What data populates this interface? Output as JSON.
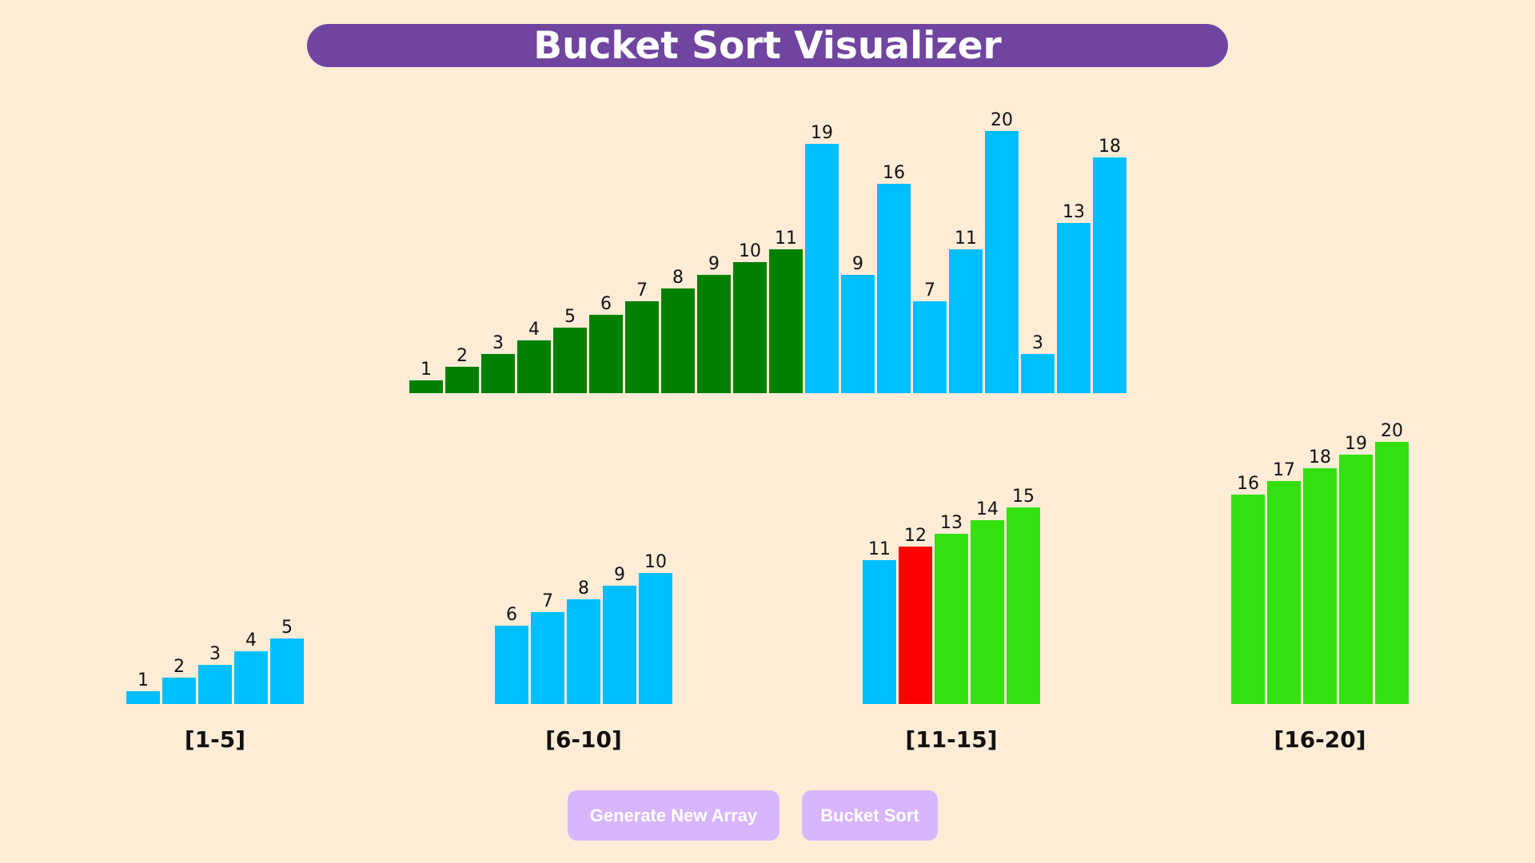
{
  "header": {
    "title": "Bucket Sort Visualizer"
  },
  "colors": {
    "sorted": "#008000",
    "unsorted": "#00bfff",
    "bucket_sorted": "#33e010",
    "current": "#ff0000",
    "button_bg": "#d8b6fb",
    "title_bg": "#6f45a0"
  },
  "main_array": {
    "values": [
      1,
      2,
      3,
      4,
      5,
      6,
      7,
      8,
      9,
      10,
      11,
      19,
      9,
      16,
      7,
      11,
      20,
      3,
      13,
      18
    ],
    "states": [
      "sorted",
      "sorted",
      "sorted",
      "sorted",
      "sorted",
      "sorted",
      "sorted",
      "sorted",
      "sorted",
      "sorted",
      "sorted",
      "unsorted",
      "unsorted",
      "unsorted",
      "unsorted",
      "unsorted",
      "unsorted",
      "unsorted",
      "unsorted",
      "unsorted"
    ]
  },
  "buckets": [
    {
      "label": "[1-5]",
      "values": [
        1,
        2,
        3,
        4,
        5
      ],
      "states": [
        "unsorted",
        "unsorted",
        "unsorted",
        "unsorted",
        "unsorted"
      ]
    },
    {
      "label": "[6-10]",
      "values": [
        6,
        7,
        8,
        9,
        10
      ],
      "states": [
        "unsorted",
        "unsorted",
        "unsorted",
        "unsorted",
        "unsorted"
      ]
    },
    {
      "label": "[11-15]",
      "values": [
        11,
        12,
        13,
        14,
        15
      ],
      "states": [
        "unsorted",
        "current",
        "bucket_sorted",
        "bucket_sorted",
        "bucket_sorted"
      ]
    },
    {
      "label": "[16-20]",
      "values": [
        16,
        17,
        18,
        19,
        20
      ],
      "states": [
        "bucket_sorted",
        "bucket_sorted",
        "bucket_sorted",
        "bucket_sorted",
        "bucket_sorted"
      ]
    }
  ],
  "buttons": {
    "generate_label": "Generate New Array",
    "sort_label": "Bucket Sort"
  }
}
